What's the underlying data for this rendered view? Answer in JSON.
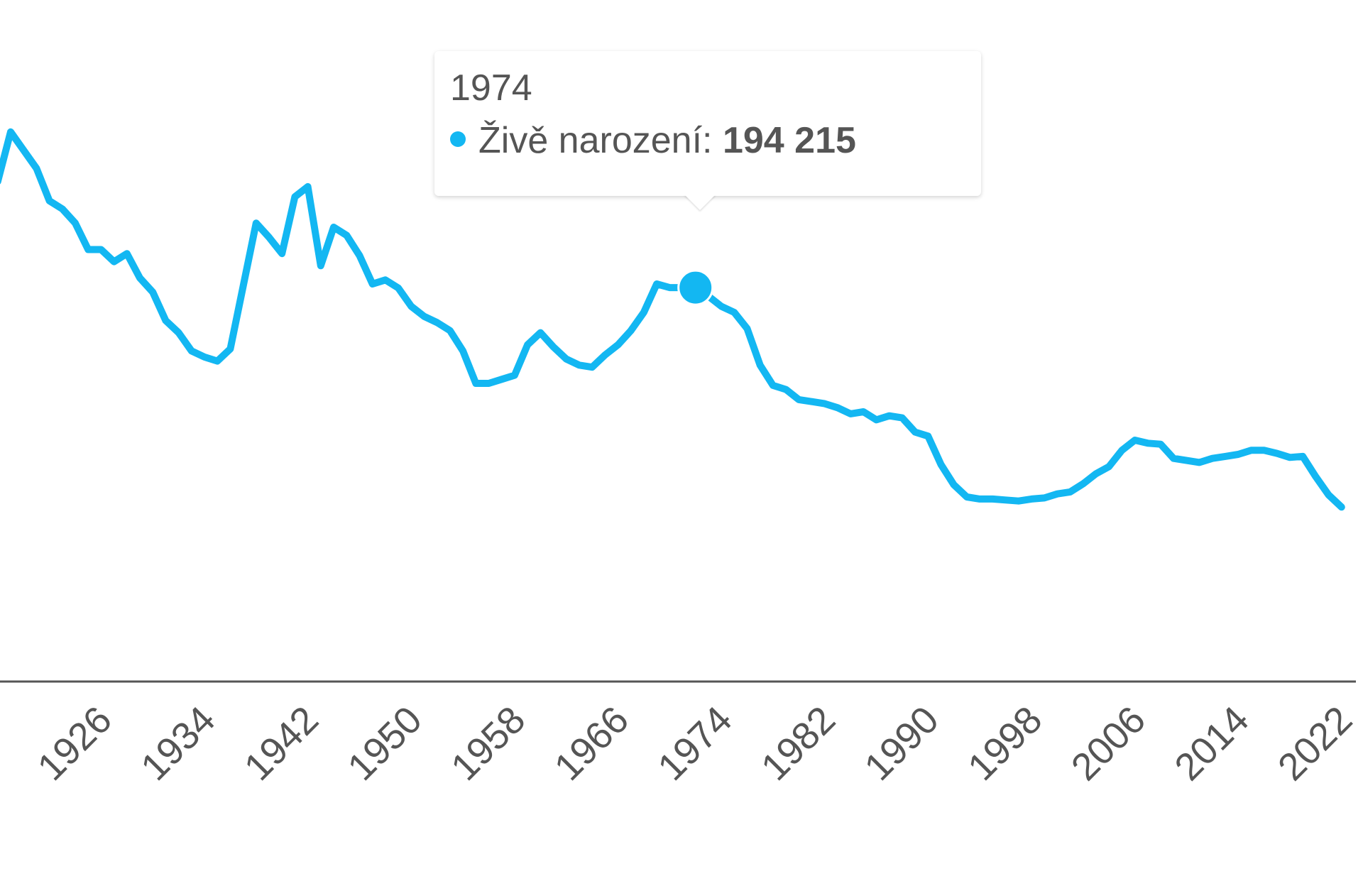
{
  "colors": {
    "series": "#13b7f2",
    "axis": "#555555",
    "text": "#555555"
  },
  "tooltip": {
    "year": "1974",
    "series_name": "Živě narození:",
    "value_text": "194 215"
  },
  "chart_data": {
    "type": "line",
    "title": "",
    "xlabel": "",
    "ylabel": "",
    "grid": false,
    "legend": "none",
    "x_tick_labels": [
      "1926",
      "1934",
      "1942",
      "1950",
      "1958",
      "1966",
      "1974",
      "1982",
      "1990",
      "1998",
      "2006",
      "2014",
      "2022"
    ],
    "highlight": {
      "x": 1974,
      "y": 194215
    },
    "series": [
      {
        "name": "Živě narození",
        "x": [
          1920,
          1921,
          1922,
          1923,
          1924,
          1925,
          1926,
          1927,
          1928,
          1929,
          1930,
          1931,
          1932,
          1933,
          1934,
          1935,
          1936,
          1937,
          1938,
          1939,
          1940,
          1941,
          1942,
          1943,
          1944,
          1945,
          1946,
          1947,
          1948,
          1949,
          1950,
          1951,
          1952,
          1953,
          1954,
          1955,
          1956,
          1957,
          1958,
          1959,
          1960,
          1961,
          1962,
          1963,
          1964,
          1965,
          1966,
          1967,
          1968,
          1969,
          1970,
          1971,
          1972,
          1973,
          1974,
          1975,
          1976,
          1977,
          1978,
          1979,
          1980,
          1981,
          1982,
          1983,
          1984,
          1985,
          1986,
          1987,
          1988,
          1989,
          1990,
          1991,
          1992,
          1993,
          1994,
          1995,
          1996,
          1997,
          1998,
          1999,
          2000,
          2001,
          2002,
          2003,
          2004,
          2005,
          2006,
          2007,
          2008,
          2009,
          2010,
          2011,
          2012,
          2013,
          2014,
          2015,
          2016,
          2017,
          2018,
          2019,
          2020,
          2021,
          2022,
          2023,
          2024
        ],
        "y": [
          246500,
          271000,
          262000,
          253000,
          237000,
          233000,
          226000,
          213000,
          213000,
          207000,
          211000,
          199000,
          192000,
          178000,
          172000,
          163000,
          160000,
          158000,
          164000,
          195000,
          226000,
          219000,
          211000,
          239000,
          244000,
          205000,
          224000,
          220000,
          210000,
          196000,
          198000,
          194000,
          185000,
          180000,
          177000,
          173000,
          163000,
          147000,
          147000,
          149000,
          151000,
          166000,
          172000,
          165000,
          159000,
          156000,
          155000,
          161000,
          166000,
          173000,
          182000,
          196000,
          194215,
          194215,
          194215,
          190000,
          185000,
          182000,
          174000,
          156000,
          146000,
          144000,
          139000,
          138000,
          137000,
          135000,
          132000,
          133000,
          129000,
          131000,
          130000,
          123000,
          121000,
          107000,
          97000,
          91000,
          90000,
          90000,
          89500,
          89000,
          90000,
          90500,
          92500,
          93500,
          97500,
          102500,
          106000,
          114000,
          119000,
          117500,
          117000,
          110000,
          109000,
          108000,
          110000,
          111000,
          112000,
          114000,
          114000,
          112500,
          110500,
          111000,
          101000,
          92000,
          86000
        ]
      }
    ]
  }
}
